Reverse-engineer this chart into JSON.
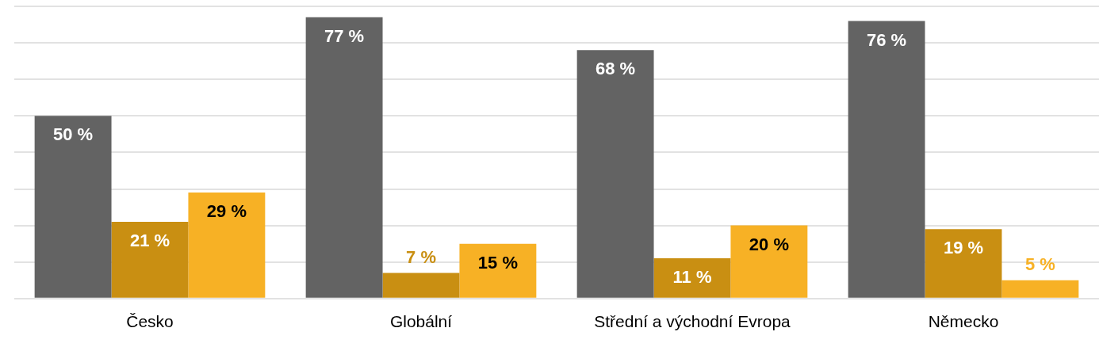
{
  "chart_data": {
    "type": "bar",
    "categories": [
      "Česko",
      "Globální",
      "Střední a východní Evropa",
      "Německo"
    ],
    "series": [
      {
        "color": "#636363",
        "values": [
          50,
          77,
          68,
          76
        ],
        "value_labels": [
          "50 %",
          "77 %",
          "68 %",
          "76 %"
        ]
      },
      {
        "color": "#c98f12",
        "values": [
          21,
          7,
          11,
          19
        ],
        "value_labels": [
          "21 %",
          "7 %",
          "11 %",
          "19 %"
        ]
      },
      {
        "color": "#f7b125",
        "values": [
          29,
          15,
          20,
          5
        ],
        "value_labels": [
          "29 %",
          "15 %",
          "20 %",
          "5 %"
        ]
      }
    ],
    "ylim": [
      0,
      80
    ],
    "yticks": [
      {
        "value": 0,
        "label": null
      },
      {
        "value": 10,
        "label": null
      },
      {
        "value": 20,
        "label": null
      },
      {
        "value": 30,
        "label": null
      },
      {
        "value": 40,
        "label": null
      },
      {
        "value": 50,
        "label": null
      },
      {
        "value": 60,
        "label": null
      },
      {
        "value": 70,
        "label": null
      },
      {
        "value": 80,
        "label": null
      }
    ],
    "tick_labels": "x",
    "grid": "y",
    "legend": false
  }
}
